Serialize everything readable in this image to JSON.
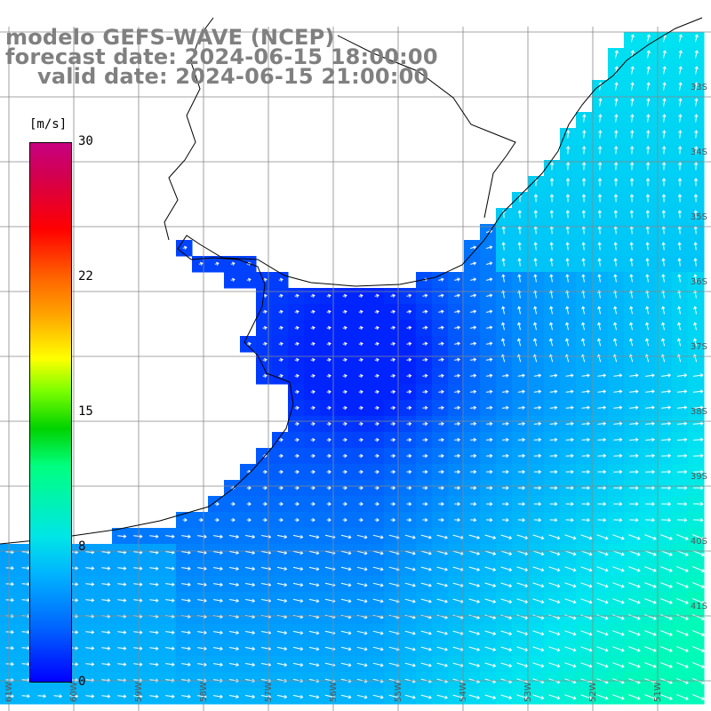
{
  "titles": {
    "line1": "modelo GEFS-WAVE (NCEP)",
    "line2": "forecast date: 2024-06-15 18:00:00",
    "line3": "valid date: 2024-06-15 21:00:00"
  },
  "colorbar": {
    "units": "[m/s]",
    "ticks": [
      "30",
      "22",
      "15",
      "8",
      "0"
    ],
    "tick_values": [
      30,
      22,
      15,
      8,
      0
    ]
  },
  "lat_labels": [
    "33S",
    "34S",
    "35S",
    "36S",
    "37S",
    "38S",
    "39S",
    "40S",
    "41S"
  ],
  "lon_labels": [
    "61W",
    "60W",
    "59W",
    "58W",
    "57W",
    "56W",
    "55W",
    "54W",
    "53W",
    "52W",
    "51W"
  ],
  "colors": {
    "land": "#ffffff",
    "coast": "#000000",
    "grid": "#888888",
    "arrow": "#ffffff",
    "title": "#808080"
  }
}
